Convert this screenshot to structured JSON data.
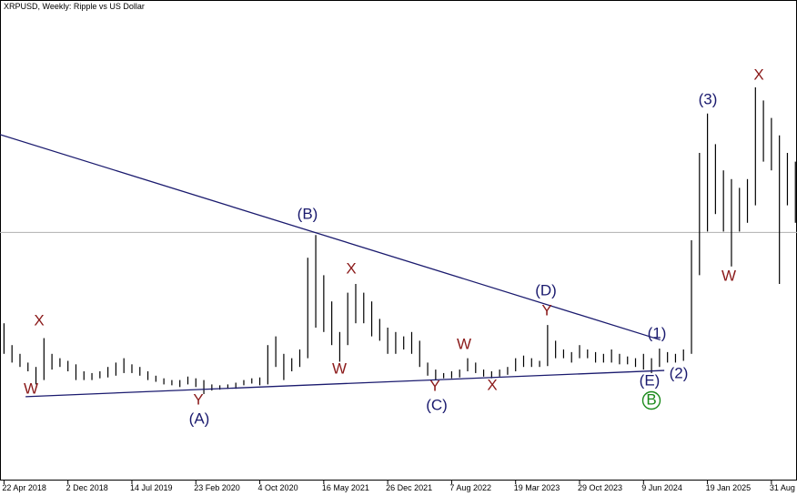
{
  "chart_data": {
    "type": "ohlc",
    "title": "XRPUSD, Weekly:  Ripple vs US Dollar",
    "color": "#000000",
    "high": [
      0.95,
      0.7,
      0.6,
      0.5,
      0.45,
      0.78,
      0.6,
      0.55,
      0.52,
      0.48,
      0.4,
      0.38,
      0.4,
      0.45,
      0.5,
      0.55,
      0.48,
      0.45,
      0.4,
      0.35,
      0.32,
      0.3,
      0.3,
      0.34,
      0.32,
      0.3,
      0.25,
      0.24,
      0.25,
      0.27,
      0.3,
      0.32,
      0.33,
      0.7,
      0.8,
      0.6,
      0.55,
      0.65,
      1.7,
      1.96,
      1.5,
      1.2,
      0.85,
      1.3,
      1.4,
      1.3,
      1.2,
      1.0,
      0.9,
      0.85,
      0.8,
      0.85,
      0.75,
      0.5,
      0.42,
      0.38,
      0.4,
      0.42,
      0.55,
      0.5,
      0.42,
      0.4,
      0.42,
      0.45,
      0.55,
      0.58,
      0.55,
      0.52,
      0.93,
      0.75,
      0.65,
      0.62,
      0.7,
      0.65,
      0.62,
      0.6,
      0.65,
      0.6,
      0.57,
      0.55,
      0.6,
      0.55,
      0.66,
      0.62,
      0.6,
      0.65,
      1.9,
      2.9,
      3.35,
      3.0,
      2.7,
      2.6,
      2.5,
      2.6,
      3.65,
      3.5,
      3.3,
      3.1,
      2.9,
      2.8
    ],
    "low": [
      0.6,
      0.5,
      0.45,
      0.4,
      0.25,
      0.3,
      0.42,
      0.45,
      0.4,
      0.3,
      0.3,
      0.3,
      0.32,
      0.33,
      0.35,
      0.38,
      0.38,
      0.35,
      0.3,
      0.28,
      0.25,
      0.24,
      0.22,
      0.25,
      0.22,
      0.14,
      0.18,
      0.19,
      0.2,
      0.2,
      0.24,
      0.26,
      0.24,
      0.25,
      0.45,
      0.3,
      0.4,
      0.45,
      0.55,
      0.9,
      0.85,
      0.7,
      0.51,
      0.7,
      0.95,
      0.95,
      0.8,
      0.75,
      0.6,
      0.6,
      0.65,
      0.6,
      0.45,
      0.35,
      0.3,
      0.32,
      0.32,
      0.33,
      0.4,
      0.38,
      0.34,
      0.32,
      0.34,
      0.36,
      0.4,
      0.45,
      0.45,
      0.45,
      0.46,
      0.55,
      0.55,
      0.5,
      0.55,
      0.55,
      0.5,
      0.5,
      0.5,
      0.48,
      0.48,
      0.45,
      0.42,
      0.38,
      0.45,
      0.5,
      0.5,
      0.52,
      0.6,
      1.5,
      2.0,
      2.2,
      2.0,
      1.6,
      2.0,
      2.1,
      2.3,
      2.8,
      2.7,
      1.4,
      2.3,
      2.1
    ],
    "xlim": [
      -0.5,
      99.2
    ],
    "ylim": [
      -0.85,
      4.65
    ],
    "xticks": [
      {
        "value": 0,
        "label": "22 Apr 2018"
      },
      {
        "value": 8,
        "label": "2 Dec 2018"
      },
      {
        "value": 16,
        "label": "14 Jul 2019"
      },
      {
        "value": 24,
        "label": "23 Feb 2020"
      },
      {
        "value": 32,
        "label": "4 Oct 2020"
      },
      {
        "value": 40,
        "label": "16 May 2021"
      },
      {
        "value": 48,
        "label": "26 Dec 2021"
      },
      {
        "value": 56,
        "label": "7 Aug 2022"
      },
      {
        "value": 64,
        "label": "19 Mar 2023"
      },
      {
        "value": 72,
        "label": "29 Oct 2023"
      },
      {
        "value": 80,
        "label": "9 Jun 2024"
      },
      {
        "value": 88,
        "label": "19 Jan 2025"
      },
      {
        "value": 96,
        "label": "31 Aug 2025"
      }
    ],
    "price_line": 1.99,
    "trendline_color": "#1a1a6e",
    "trendlines": [
      {
        "from": [
          -0.5,
          3.11
        ],
        "to": [
          82.1,
          0.76
        ]
      },
      {
        "from": [
          2.7,
          0.11
        ],
        "to": [
          82.6,
          0.41
        ]
      }
    ],
    "annotations": [
      {
        "text": "W",
        "color": "#8b1a1a"
      },
      {
        "text": "X",
        "color": "#8b1a1a"
      },
      {
        "text": "Y",
        "color": "#8b1a1a"
      },
      {
        "text": "(A)",
        "color": "#1a1a6e"
      },
      {
        "text": "(B)",
        "color": "#1a1a6e"
      },
      {
        "text": "X",
        "color": "#8b1a1a"
      },
      {
        "text": "W",
        "color": "#8b1a1a"
      },
      {
        "text": "Y",
        "color": "#8b1a1a"
      },
      {
        "text": "(C)",
        "color": "#1a1a6e"
      },
      {
        "text": "W",
        "color": "#8b1a1a"
      },
      {
        "text": "X",
        "color": "#8b1a1a"
      },
      {
        "text": "(D)",
        "color": "#1a1a6e"
      },
      {
        "text": "Y",
        "color": "#8b1a1a"
      },
      {
        "text": "(1)",
        "color": "#1a1a6e"
      },
      {
        "text": "(2)",
        "color": "#1a1a6e"
      },
      {
        "text": "(E)",
        "color": "#1a1a6e"
      },
      {
        "text": "B",
        "color": "#1a8a1a"
      },
      {
        "text": "(3)",
        "color": "#1a1a6e"
      },
      {
        "text": "W",
        "color": "#8b1a1a"
      },
      {
        "text": "X",
        "color": "#8b1a1a"
      }
    ]
  }
}
